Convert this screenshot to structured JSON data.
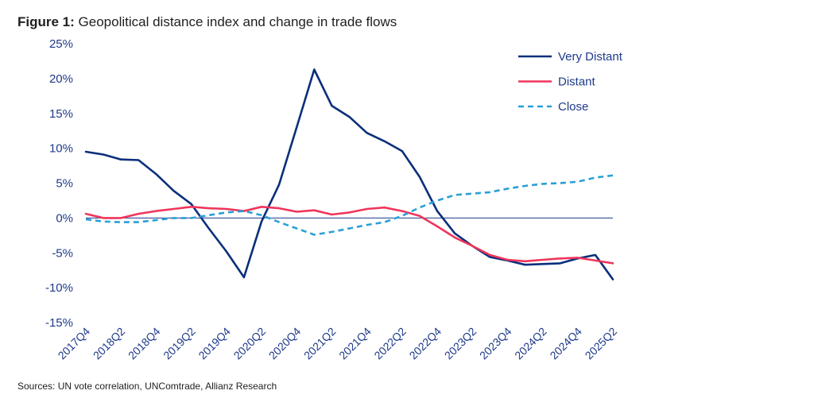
{
  "title_bold": "Figure 1:",
  "title_rest": "Geopolitical distance index and change in trade flows",
  "source": "Sources: UN vote correlation, UNComtrade, Allianz Research",
  "chart_data": {
    "type": "line",
    "title": "Geopolitical distance index and change in trade flows",
    "ylim": [
      -15,
      25
    ],
    "yticks": [
      -15,
      -10,
      -5,
      0,
      5,
      10,
      15,
      20,
      25
    ],
    "ytick_labels": [
      "-15%",
      "-10%",
      "-5%",
      "0%",
      "5%",
      "10%",
      "15%",
      "20%",
      "25%"
    ],
    "x": [
      "2017Q4",
      "2018Q1",
      "2018Q2",
      "2018Q3",
      "2018Q4",
      "2019Q1",
      "2019Q2",
      "2019Q3",
      "2019Q4",
      "2020Q1",
      "2020Q2",
      "2020Q3",
      "2020Q4",
      "2021Q1",
      "2021Q2",
      "2021Q3",
      "2021Q4",
      "2022Q1",
      "2022Q2",
      "2022Q3",
      "2022Q4",
      "2023Q1",
      "2023Q2",
      "2023Q3",
      "2023Q4",
      "2024Q1",
      "2024Q2",
      "2024Q3",
      "2024Q4",
      "2025Q1",
      "2025Q2"
    ],
    "xtick_labels": [
      "2017Q4",
      "2018Q2",
      "2018Q4",
      "2019Q2",
      "2019Q4",
      "2020Q2",
      "2020Q4",
      "2021Q2",
      "2021Q4",
      "2022Q2",
      "2022Q4",
      "2023Q2",
      "2023Q4",
      "2024Q2",
      "2024Q4",
      "2025Q2"
    ],
    "legend_position": "top-right",
    "series": [
      {
        "name": "Very Distant",
        "color": "#0a2f7a",
        "dashed": false,
        "values": [
          9.5,
          9.1,
          8.4,
          8.3,
          6.3,
          3.9,
          2.0,
          -1.5,
          -4.8,
          -8.5,
          -0.5,
          4.8,
          13.0,
          21.3,
          16.1,
          14.5,
          12.2,
          11.0,
          9.6,
          5.9,
          1.0,
          -2.2,
          -4.0,
          -5.6,
          -6.1,
          -6.7,
          -6.6,
          -6.5,
          -5.8,
          -5.3,
          -8.8
        ]
      },
      {
        "name": "Distant",
        "color": "#f0355b",
        "dashed": false,
        "values": [
          0.6,
          0.0,
          0.0,
          0.6,
          1.0,
          1.3,
          1.6,
          1.4,
          1.3,
          1.0,
          1.6,
          1.4,
          0.9,
          1.1,
          0.5,
          0.8,
          1.3,
          1.5,
          1.0,
          0.3,
          -1.2,
          -2.8,
          -4.0,
          -5.3,
          -6.0,
          -6.2,
          -6.0,
          -5.8,
          -5.7,
          -6.1,
          -6.5
        ]
      },
      {
        "name": "Close",
        "color": "#2a9fd6",
        "dashed": true,
        "values": [
          -0.2,
          -0.5,
          -0.6,
          -0.6,
          -0.3,
          0.0,
          0.0,
          0.4,
          0.8,
          1.0,
          0.4,
          -0.6,
          -1.5,
          -2.4,
          -2.0,
          -1.5,
          -1.0,
          -0.6,
          0.3,
          1.5,
          2.5,
          3.3,
          3.5,
          3.7,
          4.2,
          4.6,
          4.9,
          5.0,
          5.2,
          5.8,
          6.1
        ]
      }
    ]
  }
}
